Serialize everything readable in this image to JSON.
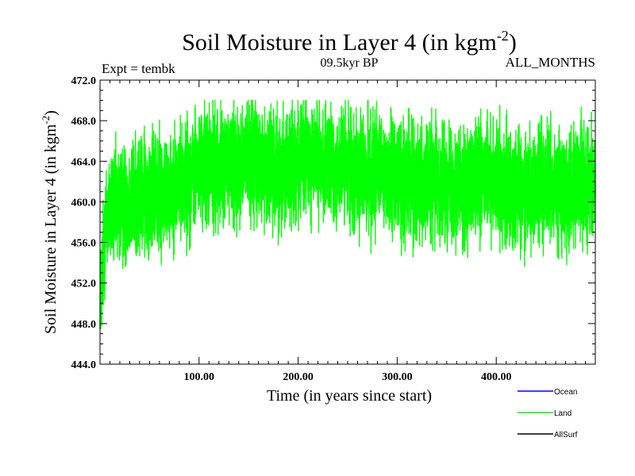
{
  "chart_data": {
    "type": "line",
    "title": "Soil Moisture in Layer 4 (in kgm",
    "title_sup": "-2",
    "title_close": ")",
    "subtitle_left": "Expt = tembk",
    "subtitle_center": "09.5kyr BP",
    "subtitle_right": "ALL_MONTHS",
    "xlabel": "Time (in years since start)",
    "ylabel": "Soil Moisture in Layer 4 (in kgm",
    "ylabel_sup": "-2",
    "ylabel_close": ")",
    "xlim": [
      0,
      500
    ],
    "ylim": [
      444.0,
      472.0
    ],
    "x_ticks": [
      100,
      200,
      300,
      400
    ],
    "x_tick_labels": [
      "100.00",
      "200.00",
      "300.00",
      "400.00"
    ],
    "y_ticks": [
      444,
      448,
      452,
      456,
      460,
      464,
      468,
      472
    ],
    "y_tick_labels": [
      "444.0",
      "448.0",
      "452.0",
      "456.0",
      "460.0",
      "464.0",
      "468.0",
      "472.0"
    ],
    "legend": [
      {
        "name": "Ocean",
        "color": "#0000ff"
      },
      {
        "name": "Land",
        "color": "#00ff00"
      },
      {
        "name": "AllSurf",
        "color": "#000000"
      }
    ],
    "legend_position": "bottom-right",
    "series": [
      {
        "name": "Land",
        "color": "#00ff00",
        "x_start": 0,
        "x_end": 500,
        "x_step": 10,
        "mean": [
          455.0,
          459.5,
          459.5,
          460.0,
          460.5,
          461.0,
          461.0,
          461.5,
          462.0,
          462.5,
          463.0,
          463.5,
          463.5,
          463.5,
          464.0,
          464.0,
          463.5,
          463.5,
          463.0,
          463.5,
          464.0,
          464.0,
          464.0,
          463.5,
          463.5,
          463.5,
          463.0,
          463.0,
          463.0,
          462.5,
          462.5,
          462.0,
          462.0,
          462.0,
          462.0,
          462.0,
          462.0,
          461.5,
          461.5,
          462.0,
          462.0,
          462.0,
          462.0,
          461.5,
          461.5,
          461.5,
          461.0,
          461.0,
          461.5,
          462.0,
          462.0
        ],
        "spread": 3.2,
        "min": 447.5,
        "max": 470.0
      }
    ]
  }
}
